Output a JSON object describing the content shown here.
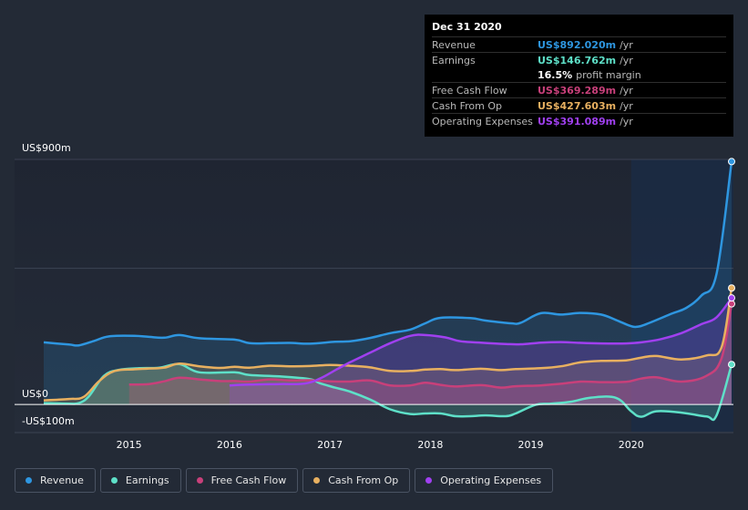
{
  "colors": {
    "revenue": "#2e96e0",
    "earnings": "#5ee0c8",
    "fcf": "#c8407a",
    "cfo": "#e8b060",
    "opex": "#a040f0",
    "background": "#232a36"
  },
  "tooltip": {
    "date": "Dec 31 2020",
    "rows": [
      {
        "label": "Revenue",
        "value": "US$892.020m",
        "unit": "/yr",
        "color": "#2e96e0"
      },
      {
        "label": "Earnings",
        "value": "US$146.762m",
        "unit": "/yr",
        "color": "#5ee0c8"
      },
      {
        "label": "",
        "value": "16.5%",
        "unit": "profit margin",
        "color": "#ffffff"
      },
      {
        "label": "Free Cash Flow",
        "value": "US$369.289m",
        "unit": "/yr",
        "color": "#c8407a"
      },
      {
        "label": "Cash From Op",
        "value": "US$427.603m",
        "unit": "/yr",
        "color": "#e8b060"
      },
      {
        "label": "Operating Expenses",
        "value": "US$391.089m",
        "unit": "/yr",
        "color": "#a040f0"
      }
    ]
  },
  "legend": [
    {
      "label": "Revenue",
      "color": "#2e96e0"
    },
    {
      "label": "Earnings",
      "color": "#5ee0c8"
    },
    {
      "label": "Free Cash Flow",
      "color": "#c8407a"
    },
    {
      "label": "Cash From Op",
      "color": "#e8b060"
    },
    {
      "label": "Operating Expenses",
      "color": "#a040f0"
    }
  ],
  "chart_data": {
    "type": "area",
    "title": "",
    "xlabel": "",
    "ylabel": "",
    "y_top_label": "US$900m",
    "y_zero_label": "US$0",
    "y_bottom_label": "-US$100m",
    "ylim": [
      -100,
      900
    ],
    "xlim": [
      2014.15,
      2021.0
    ],
    "x_ticks": [
      2015,
      2016,
      2017,
      2018,
      2019,
      2020
    ],
    "x_tick_labels": [
      "2015",
      "2016",
      "2017",
      "2018",
      "2019",
      "2020"
    ],
    "highlight_start": 2020.0,
    "series": [
      {
        "name": "Revenue",
        "key": "revenue",
        "x": [
          2014.15,
          2014.4,
          2014.5,
          2014.65,
          2014.8,
          2015.05,
          2015.2,
          2015.35,
          2015.5,
          2015.7,
          2016.05,
          2016.2,
          2016.4,
          2016.6,
          2016.8,
          2017.05,
          2017.2,
          2017.4,
          2017.6,
          2017.8,
          2017.95,
          2018.1,
          2018.4,
          2018.55,
          2018.8,
          2018.9,
          2019.1,
          2019.3,
          2019.5,
          2019.7,
          2019.85,
          2019.98,
          2020.05,
          2020.15,
          2020.4,
          2020.55,
          2020.7,
          2020.85,
          2021.0
        ],
        "values": [
          228,
          220,
          217,
          233,
          250,
          252,
          248,
          245,
          255,
          243,
          238,
          225,
          225,
          226,
          223,
          230,
          232,
          244,
          262,
          275,
          298,
          318,
          317,
          308,
          298,
          300,
          335,
          330,
          336,
          330,
          310,
          290,
          285,
          295,
          333,
          355,
          400,
          480,
          892
        ]
      },
      {
        "name": "Earnings",
        "key": "earnings",
        "x": [
          2014.15,
          2014.4,
          2014.5,
          2014.6,
          2014.75,
          2014.9,
          2015.1,
          2015.3,
          2015.5,
          2015.7,
          2016.05,
          2016.2,
          2016.5,
          2016.8,
          2016.9,
          2017.05,
          2017.2,
          2017.4,
          2017.6,
          2017.8,
          2017.95,
          2018.1,
          2018.25,
          2018.4,
          2018.55,
          2018.75,
          2018.85,
          2019.05,
          2019.2,
          2019.4,
          2019.6,
          2019.85,
          2020.0,
          2020.1,
          2020.25,
          2020.5,
          2020.75,
          2020.85,
          2021.0
        ],
        "values": [
          5,
          3,
          5,
          30,
          105,
          127,
          133,
          135,
          148,
          118,
          118,
          108,
          103,
          93,
          78,
          62,
          47,
          18,
          -18,
          -35,
          -33,
          -33,
          -43,
          -43,
          -40,
          -43,
          -33,
          -1,
          3,
          10,
          25,
          24,
          -25,
          -45,
          -25,
          -30,
          -44,
          -40,
          146.762
        ]
      },
      {
        "name": "Free Cash Flow",
        "key": "fcf",
        "x": [
          2015.0,
          2015.2,
          2015.35,
          2015.5,
          2015.7,
          2015.9,
          2016.05,
          2016.2,
          2016.4,
          2016.6,
          2016.8,
          2017.0,
          2017.2,
          2017.4,
          2017.6,
          2017.8,
          2017.95,
          2018.1,
          2018.25,
          2018.5,
          2018.7,
          2018.85,
          2019.1,
          2019.3,
          2019.5,
          2019.7,
          2019.95,
          2020.1,
          2020.25,
          2020.5,
          2020.75,
          2020.9,
          2021.0
        ],
        "values": [
          73,
          75,
          85,
          98,
          92,
          86,
          86,
          84,
          92,
          88,
          89,
          85,
          84,
          88,
          70,
          70,
          80,
          72,
          66,
          71,
          62,
          67,
          70,
          76,
          84,
          82,
          83,
          95,
          100,
          84,
          105,
          170,
          369.289
        ]
      },
      {
        "name": "Cash From Op",
        "key": "cfo",
        "x": [
          2014.15,
          2014.4,
          2014.55,
          2014.7,
          2014.85,
          2015.05,
          2015.2,
          2015.35,
          2015.5,
          2015.7,
          2015.9,
          2016.05,
          2016.2,
          2016.4,
          2016.6,
          2016.8,
          2017.0,
          2017.2,
          2017.4,
          2017.6,
          2017.8,
          2017.95,
          2018.1,
          2018.25,
          2018.5,
          2018.7,
          2018.85,
          2019.1,
          2019.3,
          2019.5,
          2019.7,
          2019.95,
          2020.1,
          2020.25,
          2020.5,
          2020.75,
          2020.9,
          2021.0
        ],
        "values": [
          15,
          20,
          28,
          85,
          122,
          129,
          132,
          135,
          150,
          140,
          134,
          138,
          135,
          142,
          140,
          141,
          145,
          142,
          136,
          123,
          123,
          128,
          130,
          126,
          131,
          126,
          130,
          133,
          140,
          155,
          160,
          162,
          172,
          178,
          165,
          180,
          210,
          427.603
        ]
      },
      {
        "name": "Operating Expenses",
        "key": "opex",
        "x": [
          2016.0,
          2016.2,
          2016.5,
          2016.75,
          2016.9,
          2017.05,
          2017.2,
          2017.4,
          2017.6,
          2017.8,
          2017.95,
          2018.15,
          2018.3,
          2018.5,
          2018.75,
          2018.9,
          2019.1,
          2019.3,
          2019.5,
          2019.7,
          2019.95,
          2020.1,
          2020.3,
          2020.5,
          2020.7,
          2020.85,
          2021.0
        ],
        "values": [
          70,
          73,
          75,
          77,
          95,
          125,
          155,
          190,
          225,
          252,
          255,
          246,
          232,
          227,
          222,
          221,
          227,
          229,
          226,
          224,
          224,
          228,
          240,
          262,
          295,
          320,
          391.089
        ]
      }
    ]
  }
}
